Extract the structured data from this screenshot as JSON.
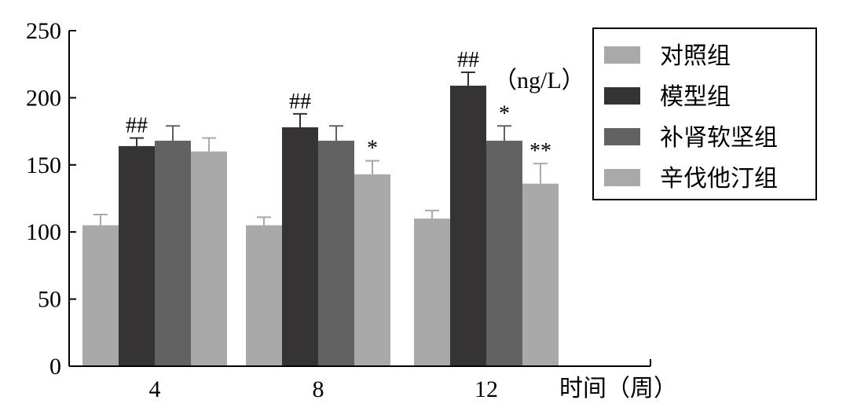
{
  "chart_data": {
    "type": "bar",
    "categories": [
      "4",
      "8",
      "12"
    ],
    "series": [
      {
        "name": "对照组",
        "color": "#a9a9a9",
        "values": [
          105,
          105,
          110
        ],
        "errors": [
          8,
          6,
          6
        ],
        "annotations": [
          "",
          "",
          ""
        ]
      },
      {
        "name": "模型组",
        "color": "#363334",
        "values": [
          164,
          178,
          209
        ],
        "errors": [
          6,
          10,
          10
        ],
        "annotations": [
          "##",
          "##",
          "##"
        ]
      },
      {
        "name": "补肾软坚组",
        "color": "#636262",
        "values": [
          168,
          168,
          168
        ],
        "errors": [
          11,
          11,
          11
        ],
        "annotations": [
          "",
          "",
          "*"
        ]
      },
      {
        "name": "辛伐他汀组",
        "color": "#a9a9a9",
        "values": [
          160,
          143,
          136
        ],
        "errors": [
          10,
          10,
          15
        ],
        "annotations": [
          "",
          "*",
          "**"
        ]
      }
    ],
    "xlabel": "时间（周）",
    "ylabel": "（ng/L）",
    "ylim": [
      0,
      250
    ],
    "yticks": [
      0,
      50,
      100,
      150,
      200,
      250
    ],
    "grid": false,
    "legend_position": "top-right"
  }
}
